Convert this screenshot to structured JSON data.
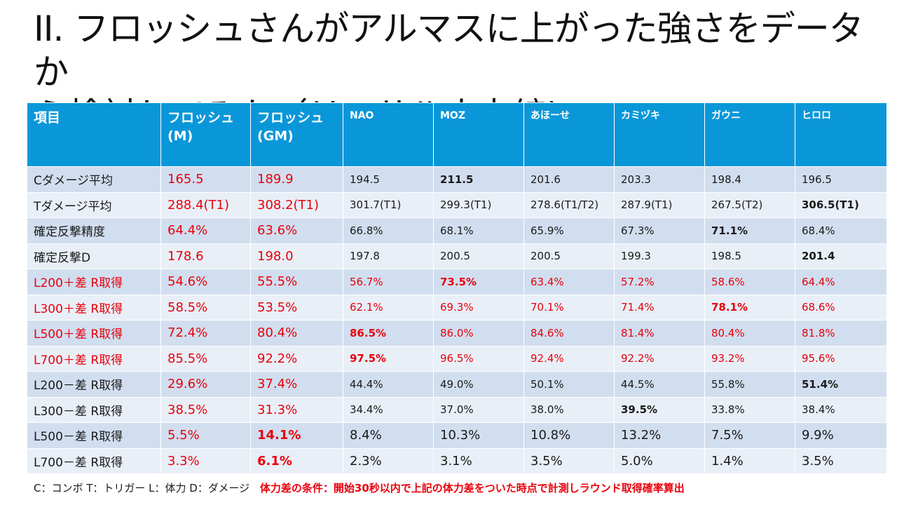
{
  "title": {
    "line1": "II. フロッシュさんがアルマスに上がった強さをデータか",
    "line2": "ら検討してみた（リーサル火力編)"
  },
  "table": {
    "headers": [
      {
        "line1": "項目",
        "line2": ""
      },
      {
        "line1": "フロッシュ",
        "line2": "(M)"
      },
      {
        "line1": "フロッシュ",
        "line2": "(GM)"
      },
      {
        "line1": "NAO",
        "line2": ""
      },
      {
        "line1": "MOZ",
        "line2": ""
      },
      {
        "line1": "あほーせ",
        "line2": ""
      },
      {
        "line1": "カミヅキ",
        "line2": ""
      },
      {
        "line1": "ガウニ",
        "line2": ""
      },
      {
        "line1": "ヒロロ",
        "line2": ""
      }
    ],
    "rows": [
      {
        "label": "Cダメージ平均",
        "label_red": false,
        "cells": [
          "165.5",
          "189.9",
          "194.5",
          "211.5",
          "201.6",
          "203.3",
          "198.4",
          "196.5"
        ],
        "bold_index": 3,
        "rest_red": false,
        "rest_big": false
      },
      {
        "label": "Tダメージ平均",
        "label_red": false,
        "cells": [
          "288.4(T1)",
          "308.2",
          "301.7(T1)",
          "299.3(T1)",
          "278.6(T1/T2)",
          "287.9(T1)",
          "267.5(T2)",
          "306.5(T1)"
        ],
        "suffix_gm": "(T1)",
        "bold_index": 7,
        "rest_red": false,
        "rest_big": false
      },
      {
        "label": "確定反撃精度",
        "label_red": false,
        "cells": [
          "64.4%",
          "63.6%",
          "66.8%",
          "68.1%",
          "65.9%",
          "67.3%",
          "71.1%",
          "68.4%"
        ],
        "bold_index": 6,
        "rest_red": false,
        "rest_big": false
      },
      {
        "label": "確定反撃D",
        "label_red": false,
        "cells": [
          "178.6",
          "198.0",
          "197.8",
          "200.5",
          "200.5",
          "199.3",
          "198.5",
          "201.4"
        ],
        "bold_index": 7,
        "rest_red": false,
        "rest_big": false
      },
      {
        "label": "L200＋差 R取得",
        "label_red": true,
        "cells": [
          "54.6%",
          "55.5%",
          "56.7%",
          "73.5%",
          "63.4%",
          "57.2%",
          "58.6%",
          "64.4%"
        ],
        "bold_index": 3,
        "rest_red": true,
        "rest_big": false
      },
      {
        "label": "L300＋差 R取得",
        "label_red": true,
        "cells": [
          "58.5%",
          "53.5%",
          "62.1%",
          "69.3%",
          "70.1%",
          "71.4%",
          "78.1%",
          "68.6%"
        ],
        "bold_index": 6,
        "rest_red": true,
        "rest_big": false
      },
      {
        "label": "L500＋差 R取得",
        "label_red": true,
        "cells": [
          "72.4%",
          "80.4%",
          "86.5%",
          "86.0%",
          "84.6%",
          "81.4%",
          "80.4%",
          "81.8%"
        ],
        "bold_index": 2,
        "rest_red": true,
        "rest_big": false
      },
      {
        "label": "L700＋差 R取得",
        "label_red": true,
        "cells": [
          "85.5%",
          "92.2%",
          "97.5%",
          "96.5%",
          "92.4%",
          "92.2%",
          "93.2%",
          "95.6%"
        ],
        "bold_index": 2,
        "rest_red": true,
        "rest_big": false
      },
      {
        "label": "L200－差 R取得",
        "label_red": false,
        "cells": [
          "29.6%",
          "37.4%",
          "44.4%",
          "49.0%",
          "50.1%",
          "44.5%",
          "55.8%",
          "51.4%"
        ],
        "bold_index": 7,
        "rest_red": false,
        "rest_big": false
      },
      {
        "label": "L300－差 R取得",
        "label_red": false,
        "cells": [
          "38.5%",
          "31.3%",
          "34.4%",
          "37.0%",
          "38.0%",
          "39.5%",
          "33.8%",
          "38.4%"
        ],
        "bold_index": 5,
        "rest_red": false,
        "rest_big": false
      },
      {
        "label": "L500－差 R取得",
        "label_red": false,
        "cells": [
          "5.5%",
          "14.1%",
          "8.4%",
          "10.3%",
          "10.8%",
          "13.2%",
          "7.5%",
          "9.9%"
        ],
        "bold_index": 1,
        "rest_red": false,
        "rest_big": true
      },
      {
        "label": "L700－差 R取得",
        "label_red": false,
        "cells": [
          "3.3%",
          "6.1%",
          "2.3%",
          "3.1%",
          "3.5%",
          "5.0%",
          "1.4%",
          "3.5%"
        ],
        "bold_index": 1,
        "rest_red": false,
        "rest_big": true
      }
    ]
  },
  "footer": {
    "legend": "C：コンボ  T：トリガー  L：体力  D：ダメージ",
    "condition": "体力差の条件：開始30秒以内で上記の体力差をついた時点で計測しラウンド取得確率算出"
  },
  "colors": {
    "header_bg": "#0a97d9",
    "row_odd": "#d1deef",
    "row_even": "#e9eff7",
    "highlight_red": "#e8000b"
  }
}
